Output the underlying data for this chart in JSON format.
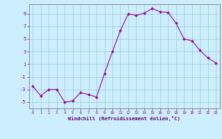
{
  "x": [
    0,
    1,
    2,
    3,
    4,
    5,
    6,
    7,
    8,
    9,
    10,
    11,
    12,
    13,
    14,
    15,
    16,
    17,
    18,
    19,
    20,
    21,
    22,
    23
  ],
  "y": [
    -2.5,
    -4.0,
    -3.0,
    -3.0,
    -5.0,
    -4.8,
    -3.5,
    -3.8,
    -4.2,
    -0.5,
    3.0,
    6.3,
    9.0,
    8.7,
    9.1,
    9.8,
    9.3,
    9.2,
    7.5,
    5.0,
    4.7,
    3.2,
    2.0,
    1.2
  ],
  "line_color": "#990099",
  "marker": "D",
  "marker_size": 1.8,
  "bg_color": "#cceeff",
  "grid_color": "#99cccc",
  "xlabel": "Windchill (Refroidissement éolien,°C)",
  "xlim": [
    -0.5,
    23.5
  ],
  "ylim": [
    -6,
    10.5
  ],
  "yticks": [
    -5,
    -3,
    -1,
    1,
    3,
    5,
    7,
    9
  ],
  "xticks": [
    0,
    1,
    2,
    3,
    4,
    5,
    6,
    7,
    8,
    9,
    10,
    11,
    12,
    13,
    14,
    15,
    16,
    17,
    18,
    19,
    20,
    21,
    22,
    23
  ],
  "tick_color": "#880088",
  "label_color": "#660066",
  "spine_color": "#888888"
}
